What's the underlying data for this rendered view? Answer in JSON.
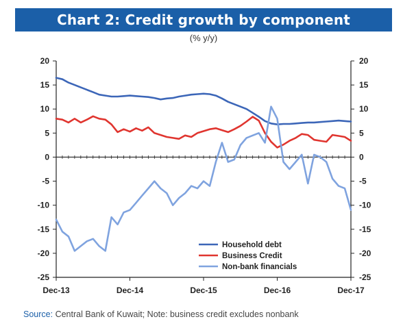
{
  "header": {
    "title": "Chart 2: Credit growth by component",
    "subtitle": "(% y/y)"
  },
  "footer": {
    "source_label": "Source:",
    "source_text": " Central Bank of Kuwait; Note: business credit excludes nonbank"
  },
  "colors": {
    "title_bg": "#1b5fa8",
    "household": "#3c66b8",
    "business": "#e0352f",
    "nonbank": "#7fa3df"
  },
  "chart_data": {
    "type": "line",
    "ylim": [
      -25,
      20
    ],
    "yticks": [
      20,
      15,
      10,
      5,
      0,
      -5,
      -10,
      -15,
      -20,
      -25
    ],
    "xlim": [
      0,
      48
    ],
    "x_tick_positions": [
      0,
      12,
      24,
      36,
      48
    ],
    "x_tick_labels": [
      "Dec-13",
      "Dec-14",
      "Dec-15",
      "Dec-16",
      "Dec-17"
    ],
    "legend_position": "bottom-right",
    "grid": false,
    "series": [
      {
        "name": "Household debt",
        "color": "#3c66b8",
        "x": [
          0,
          1,
          2,
          3,
          4,
          5,
          6,
          7,
          8,
          9,
          10,
          11,
          12,
          13,
          14,
          15,
          16,
          17,
          18,
          19,
          20,
          21,
          22,
          23,
          24,
          25,
          26,
          27,
          28,
          29,
          30,
          31,
          32,
          33,
          34,
          35,
          36,
          37,
          38,
          39,
          40,
          41,
          42,
          43,
          44,
          45,
          46,
          47,
          48
        ],
        "values": [
          16.5,
          16.2,
          15.5,
          15.0,
          14.5,
          14.0,
          13.5,
          13.0,
          12.8,
          12.6,
          12.6,
          12.7,
          12.8,
          12.7,
          12.6,
          12.5,
          12.3,
          12.0,
          12.2,
          12.3,
          12.6,
          12.8,
          13.0,
          13.1,
          13.2,
          13.1,
          12.8,
          12.2,
          11.5,
          11.0,
          10.5,
          10.0,
          9.2,
          8.4,
          7.5,
          7.0,
          6.8,
          6.9,
          6.9,
          7.0,
          7.1,
          7.2,
          7.2,
          7.3,
          7.4,
          7.5,
          7.6,
          7.5,
          7.4
        ]
      },
      {
        "name": "Business Credit",
        "color": "#e0352f",
        "x": [
          0,
          1,
          2,
          3,
          4,
          5,
          6,
          7,
          8,
          9,
          10,
          11,
          12,
          13,
          14,
          15,
          16,
          17,
          18,
          19,
          20,
          21,
          22,
          23,
          24,
          25,
          26,
          27,
          28,
          29,
          30,
          31,
          32,
          33,
          34,
          35,
          36,
          37,
          38,
          39,
          40,
          41,
          42,
          43,
          44,
          45,
          46,
          47,
          48
        ],
        "values": [
          8.0,
          7.8,
          7.2,
          8.0,
          7.2,
          7.8,
          8.5,
          8.0,
          7.8,
          6.8,
          5.2,
          5.8,
          5.3,
          6.0,
          5.5,
          6.2,
          5.0,
          4.6,
          4.2,
          4.0,
          3.8,
          4.5,
          4.2,
          5.0,
          5.4,
          5.8,
          6.0,
          5.6,
          5.2,
          5.8,
          6.5,
          7.4,
          8.4,
          7.6,
          5.0,
          3.2,
          2.0,
          2.6,
          3.4,
          4.0,
          4.8,
          4.6,
          3.6,
          3.4,
          3.2,
          4.6,
          4.4,
          4.2,
          3.4
        ]
      },
      {
        "name": "Non-bank financials",
        "color": "#7fa3df",
        "x": [
          0,
          1,
          2,
          3,
          4,
          5,
          6,
          7,
          8,
          9,
          10,
          11,
          12,
          13,
          14,
          15,
          16,
          17,
          18,
          19,
          20,
          21,
          22,
          23,
          24,
          25,
          26,
          27,
          28,
          29,
          30,
          31,
          32,
          33,
          34,
          35,
          36,
          37,
          38,
          39,
          40,
          41,
          42,
          43,
          44,
          45,
          46,
          47,
          48
        ],
        "values": [
          -13.0,
          -15.5,
          -16.5,
          -19.5,
          -18.5,
          -17.5,
          -17.0,
          -18.5,
          -19.5,
          -12.5,
          -14.0,
          -11.5,
          -11.0,
          -9.5,
          -8.0,
          -6.5,
          -5.0,
          -6.5,
          -7.5,
          -10.0,
          -8.5,
          -7.5,
          -6.0,
          -6.5,
          -5.0,
          -6.0,
          -1.0,
          3.0,
          -1.0,
          -0.5,
          2.5,
          4.0,
          4.5,
          5.0,
          3.0,
          10.5,
          8.0,
          -1.0,
          -2.5,
          -1.0,
          0.5,
          -5.5,
          0.5,
          0.0,
          -1.0,
          -4.5,
          -6.0,
          -6.5,
          -11.0
        ]
      }
    ]
  }
}
